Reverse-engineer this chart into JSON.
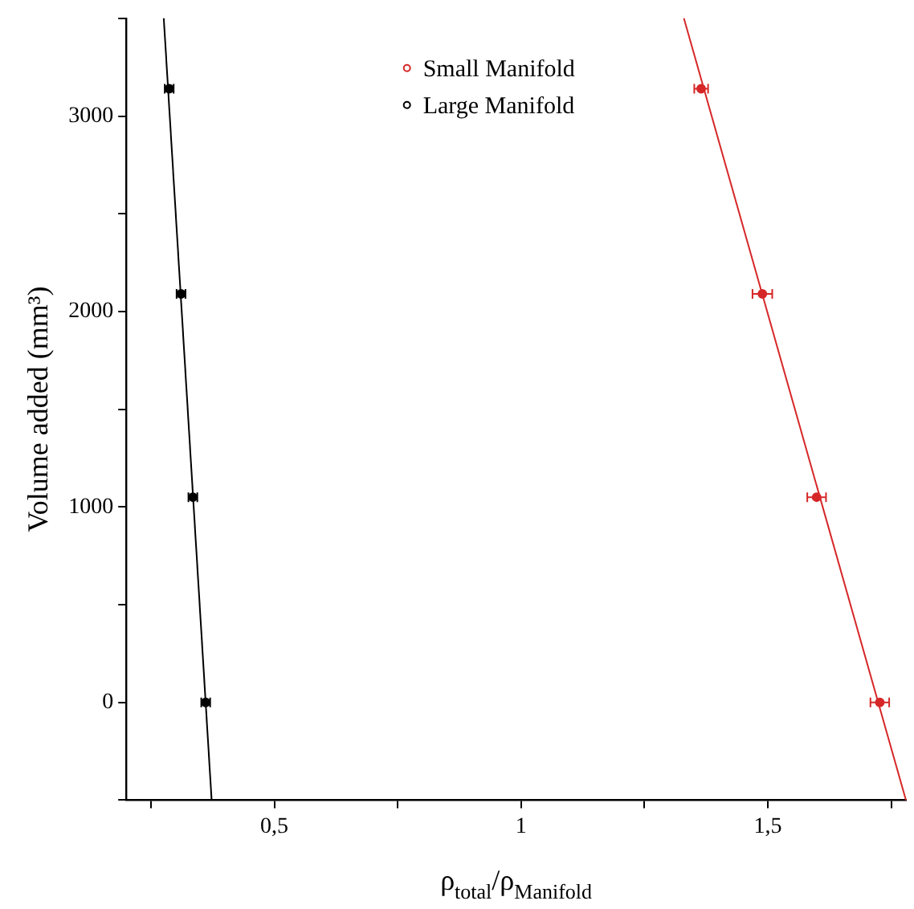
{
  "chart_data": {
    "type": "scatter",
    "xlabel": "ρ$_{total}$/ρ$_{Manifold}$",
    "ylabel": "Volume added (mm³)",
    "xlim": [
      0.2,
      1.78
    ],
    "ylim": [
      -500,
      3500
    ],
    "xticks": [
      {
        "value": 0.25,
        "label": null
      },
      {
        "value": 0.5,
        "label": "0,5"
      },
      {
        "value": 0.75,
        "label": null
      },
      1,
      {
        "value": 1.25,
        "label": null
      },
      {
        "value": 1.5,
        "label": "1,5"
      },
      {
        "value": 1.75,
        "label": null
      }
    ],
    "yticks": [
      {
        "value": -500,
        "label": null
      },
      0,
      {
        "value": 500,
        "label": null
      },
      1000,
      {
        "value": 1500,
        "label": null
      },
      2000,
      {
        "value": 2500,
        "label": null
      },
      3000,
      {
        "value": 3500,
        "label": null
      }
    ],
    "grid": false,
    "legend": "top",
    "marker": "circle",
    "series": [
      {
        "name": "Small Manifold",
        "color": "#d62728",
        "x": [
          1.365,
          1.489,
          1.599,
          1.727
        ],
        "values": [
          3140,
          2090,
          1050,
          0
        ],
        "xerrors": [
          0.014,
          0.02,
          0.019,
          0.019
        ]
      },
      {
        "name": "Large Manifold",
        "color": "#000000",
        "x": [
          0.287,
          0.311,
          0.335,
          0.361
        ],
        "values": [
          3140,
          2090,
          1050,
          0
        ],
        "xerrors": [
          0.009,
          0.009,
          0.009,
          0.009
        ]
      },
      {
        "type": "line",
        "color": "#d62728",
        "x": [
          1.33,
          1.78
        ],
        "values": [
          3500,
          -500
        ],
        "marker": "none",
        "line_style": "solid"
      },
      {
        "type": "line",
        "color": "#000000",
        "x": [
          0.276,
          0.373
        ],
        "values": [
          3500,
          -500
        ],
        "marker": "none",
        "line_style": "solid"
      }
    ]
  }
}
